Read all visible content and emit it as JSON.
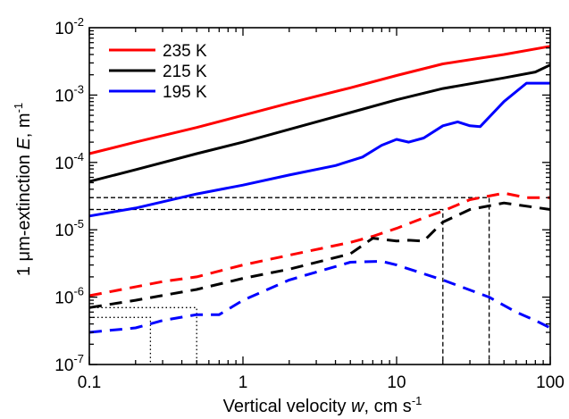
{
  "chart_data": {
    "type": "line",
    "xlabel": {
      "prefix": "Vertical velocity ",
      "var": "w",
      "suffix": ", cm s",
      "sup": "-1"
    },
    "ylabel": {
      "prefix": "1 ",
      "mu": "μ",
      "mid": "m-extinction ",
      "var": "E",
      "suffix": ", m",
      "sup": "-1"
    },
    "x_scale": "log",
    "y_scale": "log",
    "xlim": [
      0.1,
      100
    ],
    "ylim": [
      1e-07,
      0.01
    ],
    "x_ticks": [
      {
        "value": 0.1,
        "label": "0.1"
      },
      {
        "value": 1,
        "label": "1"
      },
      {
        "value": 10,
        "label": "10"
      },
      {
        "value": 100,
        "label": "100"
      }
    ],
    "y_ticks": [
      {
        "value": 1e-07,
        "base": "10",
        "exp": "-7"
      },
      {
        "value": 1e-06,
        "base": "10",
        "exp": "-6"
      },
      {
        "value": 1e-05,
        "base": "10",
        "exp": "-5"
      },
      {
        "value": 0.0001,
        "base": "10",
        "exp": "-4"
      },
      {
        "value": 0.001,
        "base": "10",
        "exp": "-3"
      },
      {
        "value": 0.01,
        "base": "10",
        "exp": "-2"
      }
    ],
    "grid": false,
    "legend_position": "top-left",
    "series": [
      {
        "name": "235 K",
        "color": "#ff0000",
        "style": "solid",
        "points": [
          [
            0.1,
            0.000135
          ],
          [
            0.2,
            0.0002
          ],
          [
            0.5,
            0.00033
          ],
          [
            1,
            0.0005
          ],
          [
            2,
            0.00076
          ],
          [
            5,
            0.00128
          ],
          [
            10,
            0.00195
          ],
          [
            20,
            0.0029
          ],
          [
            50,
            0.004
          ],
          [
            100,
            0.0053
          ]
        ]
      },
      {
        "name": "215 K",
        "color": "#000000",
        "style": "solid",
        "points": [
          [
            0.1,
            5.2e-05
          ],
          [
            0.2,
            7.8e-05
          ],
          [
            0.5,
            0.000135
          ],
          [
            1,
            0.0002
          ],
          [
            2,
            0.00031
          ],
          [
            5,
            0.00055
          ],
          [
            10,
            0.00085
          ],
          [
            20,
            0.00125
          ],
          [
            50,
            0.0018
          ],
          [
            80,
            0.0022
          ],
          [
            100,
            0.0028
          ]
        ]
      },
      {
        "name": "195 K",
        "color": "#0000ff",
        "style": "solid",
        "points": [
          [
            0.1,
            1.6e-05
          ],
          [
            0.2,
            2.1e-05
          ],
          [
            0.5,
            3.4e-05
          ],
          [
            1,
            4.6e-05
          ],
          [
            2,
            6.5e-05
          ],
          [
            4,
            9e-05
          ],
          [
            6,
            0.00012
          ],
          [
            8,
            0.00018
          ],
          [
            10,
            0.00022
          ],
          [
            12,
            0.0002
          ],
          [
            15,
            0.00023
          ],
          [
            20,
            0.00035
          ],
          [
            25,
            0.0004
          ],
          [
            30,
            0.00035
          ],
          [
            35,
            0.00034
          ],
          [
            50,
            0.0008
          ],
          [
            70,
            0.0015
          ],
          [
            100,
            0.0015
          ]
        ]
      },
      {
        "name": "",
        "color": "#ff0000",
        "style": "dashed",
        "points": [
          [
            0.1,
            1.05e-06
          ],
          [
            0.3,
            1.7e-06
          ],
          [
            0.5,
            2e-06
          ],
          [
            1,
            3e-06
          ],
          [
            2,
            4.2e-06
          ],
          [
            5,
            6.5e-06
          ],
          [
            7,
            8e-06
          ],
          [
            10,
            1.05e-05
          ],
          [
            15,
            1.5e-05
          ],
          [
            20,
            1.9e-05
          ],
          [
            30,
            2.8e-05
          ],
          [
            50,
            3.5e-05
          ],
          [
            70,
            3e-05
          ],
          [
            100,
            3e-05
          ]
        ]
      },
      {
        "name": "",
        "color": "#000000",
        "style": "dashed",
        "points": [
          [
            0.1,
            7e-07
          ],
          [
            0.2,
            9e-07
          ],
          [
            0.5,
            1.3e-06
          ],
          [
            1,
            1.9e-06
          ],
          [
            2,
            2.6e-06
          ],
          [
            5,
            4.4e-06
          ],
          [
            7,
            7.5e-06
          ],
          [
            10,
            6.8e-06
          ],
          [
            12,
            7e-06
          ],
          [
            15,
            6.8e-06
          ],
          [
            20,
            1.3e-05
          ],
          [
            30,
            2e-05
          ],
          [
            50,
            2.5e-05
          ],
          [
            100,
            2e-05
          ]
        ]
      },
      {
        "name": "",
        "color": "#0000ff",
        "style": "dashed",
        "points": [
          [
            0.1,
            3e-07
          ],
          [
            0.2,
            3.5e-07
          ],
          [
            0.3,
            4.5e-07
          ],
          [
            0.5,
            5.5e-07
          ],
          [
            0.7,
            5.5e-07
          ],
          [
            1,
            9e-07
          ],
          [
            2,
            1.8e-06
          ],
          [
            5,
            3.3e-06
          ],
          [
            8,
            3.4e-06
          ],
          [
            10,
            3e-06
          ],
          [
            20,
            1.8e-06
          ],
          [
            40,
            1e-06
          ],
          [
            60,
            6e-07
          ],
          [
            80,
            4.5e-07
          ],
          [
            100,
            3.5e-07
          ]
        ]
      }
    ],
    "reference_lines": [
      {
        "style": "dashed",
        "points": [
          [
            0.1,
            3e-05
          ],
          [
            40,
            3e-05
          ],
          [
            40,
            1e-07
          ]
        ]
      },
      {
        "style": "dashed",
        "points": [
          [
            0.1,
            2e-05
          ],
          [
            20,
            2e-05
          ],
          [
            20,
            1e-07
          ]
        ]
      },
      {
        "style": "dotted",
        "points": [
          [
            0.1,
            7e-07
          ],
          [
            0.5,
            7e-07
          ],
          [
            0.5,
            1e-07
          ]
        ]
      },
      {
        "style": "dotted",
        "points": [
          [
            0.1,
            5e-07
          ],
          [
            0.25,
            5e-07
          ],
          [
            0.25,
            1e-07
          ]
        ]
      }
    ]
  }
}
